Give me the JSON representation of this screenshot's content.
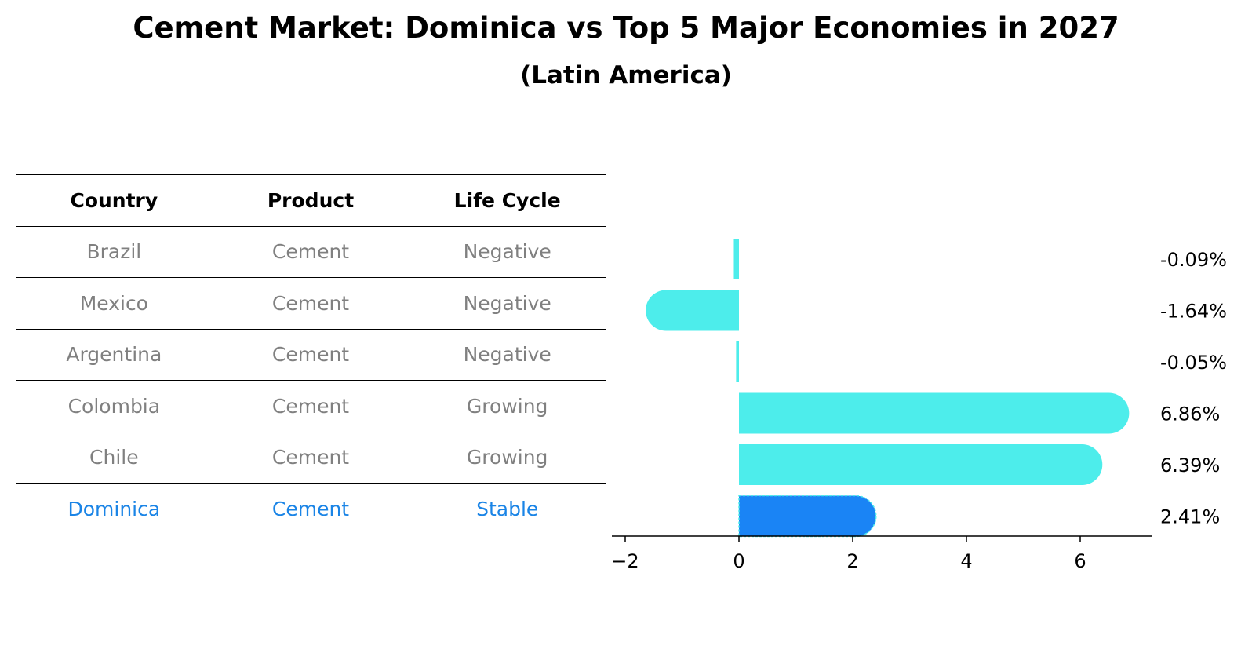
{
  "chart_data": {
    "type": "bar",
    "orientation": "horizontal",
    "title": "Cement Market: Dominica vs Top 5 Major Economies in 2027",
    "subtitle": "(Latin America)",
    "table": {
      "columns": [
        "Country",
        "Product",
        "Life Cycle"
      ],
      "rows": [
        [
          "Brazil",
          "Cement",
          "Negative"
        ],
        [
          "Mexico",
          "Cement",
          "Negative"
        ],
        [
          "Argentina",
          "Cement",
          "Negative"
        ],
        [
          "Colombia",
          "Cement",
          "Growing"
        ],
        [
          "Chile",
          "Cement",
          "Growing"
        ],
        [
          "Dominica",
          "Cement",
          "Stable"
        ]
      ],
      "highlight_row": 5
    },
    "categories": [
      "Brazil",
      "Mexico",
      "Argentina",
      "Colombia",
      "Chile",
      "Dominica"
    ],
    "values": [
      -0.09,
      -1.64,
      -0.05,
      6.86,
      6.39,
      2.41
    ],
    "value_labels": [
      "-0.09%",
      "-1.64%",
      "-0.05%",
      "6.86%",
      "6.39%",
      "2.41%"
    ],
    "xlim": [
      -2.05,
      7.3
    ],
    "xticks": [
      -2,
      0,
      2,
      4,
      6
    ],
    "xtick_labels": [
      "−2",
      "0",
      "2",
      "4",
      "6"
    ],
    "xlabel": "",
    "ylabel": "",
    "colors": {
      "default": "#4dedeb",
      "highlight": "#1a84f5",
      "highlight_text": "#1a84e6",
      "muted_text": "#808080"
    }
  }
}
